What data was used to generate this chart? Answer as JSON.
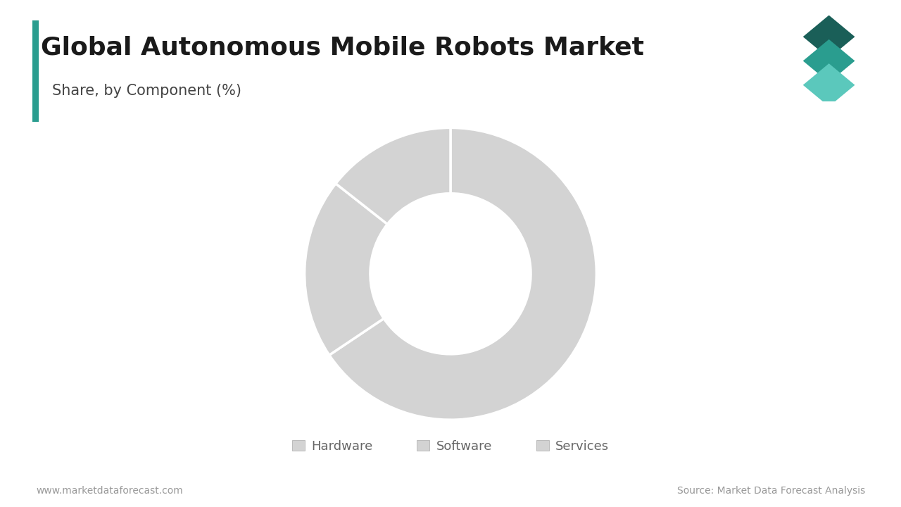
{
  "title": "Global Autonomous Mobile Robots Market",
  "subtitle": "Share, by Component (%)",
  "segments": [
    "Hardware",
    "Software",
    "Services"
  ],
  "values": [
    65.6,
    20.0,
    14.4
  ],
  "colors": [
    "#d3d3d3",
    "#d3d3d3",
    "#d3d3d3"
  ],
  "wedge_edge_color": "#ffffff",
  "wedge_linewidth": 2.5,
  "donut_hole": 0.55,
  "background_color": "#ffffff",
  "title_fontsize": 26,
  "subtitle_fontsize": 15,
  "title_color": "#1a1a1a",
  "subtitle_color": "#444444",
  "legend_fontsize": 13,
  "legend_color": "#666666",
  "footer_left": "www.marketdataforecast.com",
  "footer_right": "Source: Market Data Forecast Analysis",
  "footer_fontsize": 10,
  "footer_color": "#999999",
  "left_bar_color": "#2a9d8f",
  "start_angle": 90
}
